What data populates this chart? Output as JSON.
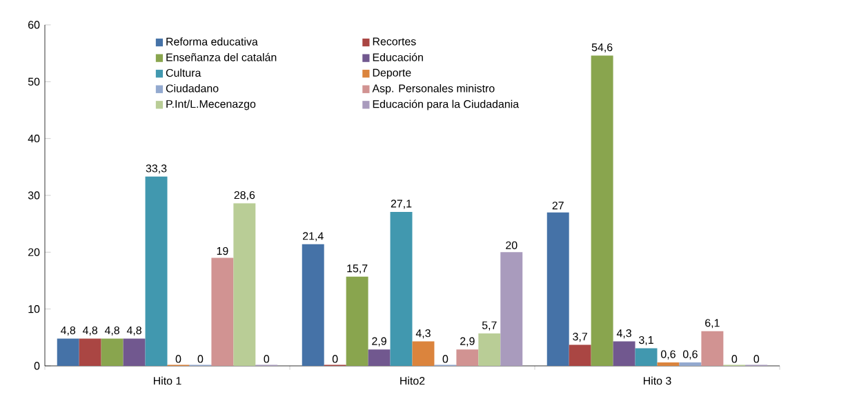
{
  "chart_data": {
    "type": "bar",
    "categories": [
      "Hito 1",
      "Hito2",
      "Hito 3"
    ],
    "ylim": [
      0,
      60
    ],
    "yticks": [
      0,
      10,
      20,
      30,
      40,
      50,
      60
    ],
    "legend": "top",
    "series": [
      {
        "name": "Reforma educativa",
        "color": "#4572a7",
        "values": [
          4.8,
          21.4,
          27
        ],
        "value_labels": [
          "4,8",
          "21,4",
          "27"
        ]
      },
      {
        "name": "Recortes",
        "color": "#aa4643",
        "values": [
          4.8,
          0,
          3.7
        ],
        "value_labels": [
          "4,8",
          "0",
          "3,7"
        ]
      },
      {
        "name": "Enseñanza del catalán",
        "color": "#89a54e",
        "values": [
          4.8,
          15.7,
          54.6
        ],
        "value_labels": [
          "4,8",
          "15,7",
          "54,6"
        ]
      },
      {
        "name": "Educación",
        "color": "#71588f",
        "values": [
          4.8,
          2.9,
          4.3
        ],
        "value_labels": [
          "4,8",
          "2,9",
          "4,3"
        ]
      },
      {
        "name": "Cultura",
        "color": "#4198af",
        "values": [
          33.3,
          27.1,
          3.1
        ],
        "value_labels": [
          "33,3",
          "27,1",
          "3,1"
        ]
      },
      {
        "name": "Deporte",
        "color": "#db843d",
        "values": [
          0,
          4.3,
          0.6
        ],
        "value_labels": [
          "0",
          "4,3",
          "0,6"
        ]
      },
      {
        "name": "Ciudadano",
        "color": "#93a9cf",
        "values": [
          0,
          0,
          0.6
        ],
        "value_labels": [
          "0",
          "0",
          "0,6"
        ]
      },
      {
        "name": "Asp. Personales ministro",
        "color": "#d19392",
        "values": [
          19,
          2.9,
          6.1
        ],
        "value_labels": [
          "19",
          "2,9",
          "6,1"
        ]
      },
      {
        "name": "P.Int/L.Mecenazgo",
        "color": "#b9cd96",
        "values": [
          28.6,
          5.7,
          0
        ],
        "value_labels": [
          "28,6",
          "5,7",
          "0"
        ]
      },
      {
        "name": "Educación para la Ciudadania",
        "color": "#a99bbd",
        "values": [
          0,
          20,
          0
        ],
        "value_labels": [
          "0",
          "20",
          "0"
        ]
      }
    ]
  }
}
